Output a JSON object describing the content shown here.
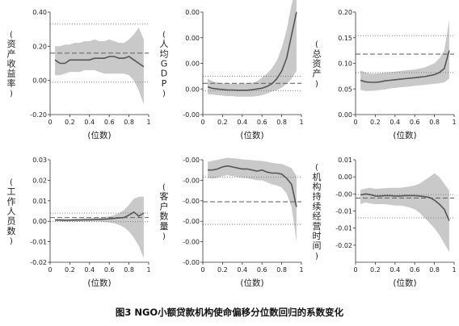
{
  "caption": "图3  NGO小额贷款机构使命偏移分位数回归的系数变化",
  "chart_data": [
    {
      "type": "line",
      "ylabel": "(资产收益率)",
      "xlabel": "(位数)",
      "xlim": [
        0,
        1
      ],
      "ylim": [
        -0.2,
        0.4
      ],
      "xticks": [
        "0",
        "0.2",
        "0.4",
        "0.6",
        "0.8",
        "1"
      ],
      "yticks": [
        "0.40",
        "0.20",
        "0.00",
        "-0.20"
      ],
      "ytick_values": [
        0.4,
        0.2,
        0.0,
        -0.2
      ],
      "ols_coef": 0.16,
      "ols_ci": [
        -0.01,
        0.33
      ],
      "x": [
        0.05,
        0.1,
        0.15,
        0.2,
        0.25,
        0.3,
        0.35,
        0.4,
        0.45,
        0.5,
        0.55,
        0.6,
        0.65,
        0.7,
        0.75,
        0.8,
        0.85,
        0.9,
        0.95
      ],
      "values": [
        0.12,
        0.1,
        0.1,
        0.12,
        0.12,
        0.12,
        0.12,
        0.12,
        0.13,
        0.13,
        0.13,
        0.14,
        0.14,
        0.13,
        0.13,
        0.14,
        0.12,
        0.1,
        0.08
      ],
      "ci_upper": [
        0.2,
        0.2,
        0.21,
        0.21,
        0.22,
        0.22,
        0.23,
        0.23,
        0.24,
        0.23,
        0.23,
        0.24,
        0.23,
        0.22,
        0.22,
        0.24,
        0.27,
        0.31,
        0.24
      ],
      "ci_lower": [
        0.03,
        0.03,
        0.04,
        0.05,
        0.05,
        0.05,
        0.06,
        0.06,
        0.06,
        0.05,
        0.04,
        0.04,
        0.04,
        0.04,
        0.04,
        0.03,
        0.0,
        -0.06,
        -0.14
      ]
    },
    {
      "type": "line",
      "ylabel": "(人均GDP)",
      "xlabel": "(位数)",
      "xlim": [
        0,
        1
      ],
      "ylim": [
        -0.01,
        0.03
      ],
      "xticks": [
        "0",
        "0.2",
        "0.4",
        "0.6",
        "0.8",
        "1"
      ],
      "yticks": [
        "0.00",
        "0.00",
        "0.00",
        "0.00",
        "-0.00"
      ],
      "ytick_values": [
        0.03,
        0.02,
        0.01,
        0.0,
        -0.01
      ],
      "ols_coef": 0.0022,
      "ols_ci": [
        -0.0007,
        0.005
      ],
      "x": [
        0.05,
        0.1,
        0.15,
        0.2,
        0.25,
        0.3,
        0.35,
        0.4,
        0.45,
        0.5,
        0.55,
        0.6,
        0.65,
        0.7,
        0.75,
        0.8,
        0.85,
        0.9,
        0.95
      ],
      "values": [
        0.0008,
        0.0002,
        0.0,
        -0.0002,
        -0.0004,
        -0.0004,
        -0.0005,
        -0.0005,
        -0.0005,
        -0.0003,
        0.0,
        0.0003,
        0.001,
        0.002,
        0.004,
        0.007,
        0.012,
        0.021,
        0.03
      ],
      "ci_upper": [
        0.004,
        0.003,
        0.0025,
        0.0022,
        0.002,
        0.002,
        0.002,
        0.002,
        0.0022,
        0.0024,
        0.003,
        0.0045,
        0.006,
        0.008,
        0.011,
        0.016,
        0.023,
        0.033,
        0.04
      ],
      "ci_lower": [
        -0.002,
        -0.0022,
        -0.0024,
        -0.0026,
        -0.0028,
        -0.0028,
        -0.003,
        -0.003,
        -0.003,
        -0.003,
        -0.0028,
        -0.0024,
        -0.0018,
        -0.001,
        -0.0005,
        0.0005,
        0.002,
        0.004,
        0.007
      ]
    },
    {
      "type": "line",
      "ylabel": "(总资产)",
      "xlabel": "(位数)",
      "xlim": [
        0,
        1
      ],
      "ylim": [
        0.0,
        0.2
      ],
      "xticks": [
        "0",
        "0.2",
        "0.4",
        "0.6",
        "0.8",
        "1"
      ],
      "yticks": [
        "0.20",
        "0.15",
        "0.10",
        "0.05",
        "0.00"
      ],
      "ytick_values": [
        0.2,
        0.15,
        0.1,
        0.05,
        0.0
      ],
      "ols_coef": 0.118,
      "ols_ci": [
        0.082,
        0.154
      ],
      "x": [
        0.05,
        0.1,
        0.15,
        0.2,
        0.25,
        0.3,
        0.35,
        0.4,
        0.45,
        0.5,
        0.55,
        0.6,
        0.65,
        0.7,
        0.75,
        0.8,
        0.85,
        0.9,
        0.95
      ],
      "values": [
        0.067,
        0.064,
        0.063,
        0.063,
        0.064,
        0.066,
        0.067,
        0.068,
        0.069,
        0.07,
        0.071,
        0.072,
        0.073,
        0.074,
        0.076,
        0.078,
        0.082,
        0.09,
        0.125
      ],
      "ci_upper": [
        0.086,
        0.082,
        0.08,
        0.08,
        0.081,
        0.082,
        0.083,
        0.084,
        0.085,
        0.086,
        0.087,
        0.088,
        0.09,
        0.092,
        0.096,
        0.1,
        0.11,
        0.125,
        0.185
      ],
      "ci_lower": [
        0.048,
        0.046,
        0.046,
        0.047,
        0.048,
        0.049,
        0.051,
        0.052,
        0.053,
        0.054,
        0.055,
        0.056,
        0.057,
        0.058,
        0.059,
        0.06,
        0.061,
        0.063,
        0.07
      ]
    },
    {
      "type": "line",
      "ylabel": "(工作人员数)",
      "xlabel": "(位数)",
      "xlim": [
        0,
        1
      ],
      "ylim": [
        -0.02,
        0.03
      ],
      "xticks": [
        "0",
        "0.2",
        "0.4",
        "0.6",
        "0.8",
        "1"
      ],
      "yticks": [
        "0.03",
        "0.02",
        "0.01",
        "0.00",
        "-0.01",
        "-0.02"
      ],
      "ytick_values": [
        0.03,
        0.02,
        0.01,
        0.0,
        -0.01,
        -0.02
      ],
      "ols_coef": 0.0018,
      "ols_ci": [
        -0.0002,
        0.004
      ],
      "x": [
        0.05,
        0.1,
        0.15,
        0.2,
        0.25,
        0.3,
        0.35,
        0.4,
        0.45,
        0.5,
        0.55,
        0.6,
        0.65,
        0.7,
        0.75,
        0.8,
        0.85,
        0.9,
        0.95
      ],
      "values": [
        0.0006,
        0.0006,
        0.0005,
        0.0005,
        0.0006,
        0.0006,
        0.0007,
        0.0007,
        0.0008,
        0.0009,
        0.001,
        0.0012,
        0.0014,
        0.0016,
        0.0018,
        0.003,
        0.0045,
        0.0025,
        0.004
      ],
      "ci_upper": [
        0.0012,
        0.0012,
        0.0012,
        0.0012,
        0.0013,
        0.0013,
        0.0014,
        0.0015,
        0.0016,
        0.0017,
        0.002,
        0.0024,
        0.003,
        0.004,
        0.0055,
        0.008,
        0.011,
        0.012,
        0.012
      ],
      "ci_lower": [
        0.0,
        0.0,
        -0.0001,
        -0.0001,
        -0.0001,
        -0.0001,
        -0.0001,
        -0.0001,
        -0.0001,
        -0.0002,
        -0.0004,
        -0.0006,
        -0.001,
        -0.0018,
        -0.003,
        -0.005,
        -0.008,
        -0.012,
        -0.018
      ]
    },
    {
      "type": "line",
      "ylabel": "(客户数量)",
      "xlabel": "(位数)",
      "xlim": [
        0,
        1
      ],
      "ylim": [
        -0.05,
        0.0
      ],
      "xticks": [
        "0",
        "0.2",
        "0.4",
        "0.6",
        "0.8",
        "1"
      ],
      "yticks": [
        "-0.00",
        "-0.00",
        "-0.00",
        "-0.00",
        "-0.00",
        "-0.00"
      ],
      "ytick_values": [
        0.0,
        -0.01,
        -0.02,
        -0.03,
        -0.04,
        -0.05
      ],
      "ols_coef": -0.0205,
      "ols_ci": [
        -0.0315,
        -0.0085
      ],
      "x": [
        0.05,
        0.1,
        0.15,
        0.2,
        0.25,
        0.3,
        0.35,
        0.4,
        0.45,
        0.5,
        0.55,
        0.6,
        0.65,
        0.7,
        0.75,
        0.8,
        0.85,
        0.9,
        0.95
      ],
      "values": [
        -0.005,
        -0.005,
        -0.0045,
        -0.0035,
        -0.003,
        -0.0035,
        -0.004,
        -0.0045,
        -0.0045,
        -0.005,
        -0.0055,
        -0.005,
        -0.006,
        -0.0065,
        -0.0065,
        -0.007,
        -0.009,
        -0.012,
        -0.023
      ],
      "ci_upper": [
        -0.001,
        -0.0005,
        0.0,
        0.0005,
        0.001,
        0.0008,
        0.0006,
        0.0002,
        0.0,
        -0.0002,
        -0.0004,
        -0.0006,
        -0.001,
        -0.0014,
        -0.0018,
        -0.002,
        -0.003,
        -0.004,
        -0.008
      ],
      "ci_lower": [
        -0.009,
        -0.0092,
        -0.0088,
        -0.008,
        -0.0075,
        -0.008,
        -0.0084,
        -0.0088,
        -0.009,
        -0.0095,
        -0.01,
        -0.01,
        -0.011,
        -0.012,
        -0.0125,
        -0.0135,
        -0.0165,
        -0.023,
        -0.04
      ]
    },
    {
      "type": "line",
      "ylabel": "(机构持续经营时间)",
      "xlabel": "(位数)",
      "xlim": [
        0,
        1
      ],
      "ylim": [
        -0.02,
        0.01
      ],
      "xticks": [
        "0",
        "0.2",
        "0.4",
        "0.6",
        "0.8",
        "1"
      ],
      "yticks": [
        "0.01",
        "0.00",
        "-0.00",
        "-0.01",
        "-0.01",
        "-0.02"
      ],
      "ytick_values": [
        0.01,
        0.005,
        0.0,
        -0.005,
        -0.01,
        -0.015
      ],
      "ols_coef": -0.0012,
      "ols_ci": [
        -0.0002,
        -0.007
      ],
      "x": [
        0.05,
        0.1,
        0.15,
        0.2,
        0.25,
        0.3,
        0.35,
        0.4,
        0.45,
        0.5,
        0.55,
        0.6,
        0.65,
        0.7,
        0.75,
        0.8,
        0.85,
        0.9,
        0.95
      ],
      "values": [
        -0.0003,
        0.0,
        -0.0002,
        -0.0006,
        -0.0006,
        -0.0005,
        -0.0005,
        -0.0006,
        -0.0006,
        -0.0005,
        -0.0005,
        -0.0005,
        -0.0006,
        -0.0008,
        -0.001,
        -0.0018,
        -0.003,
        -0.0045,
        -0.0078
      ],
      "ci_upper": [
        0.0012,
        0.0016,
        0.0018,
        0.0015,
        0.0016,
        0.0017,
        0.0018,
        0.0018,
        0.0018,
        0.002,
        0.0022,
        0.0025,
        0.003,
        0.004,
        0.005,
        0.006,
        0.005,
        0.003,
        0.001
      ],
      "ci_lower": [
        -0.003,
        -0.0025,
        -0.0028,
        -0.003,
        -0.003,
        -0.003,
        -0.0032,
        -0.0034,
        -0.0034,
        -0.0036,
        -0.004,
        -0.0045,
        -0.0055,
        -0.007,
        -0.0085,
        -0.01,
        -0.012,
        -0.0145,
        -0.017
      ]
    }
  ]
}
